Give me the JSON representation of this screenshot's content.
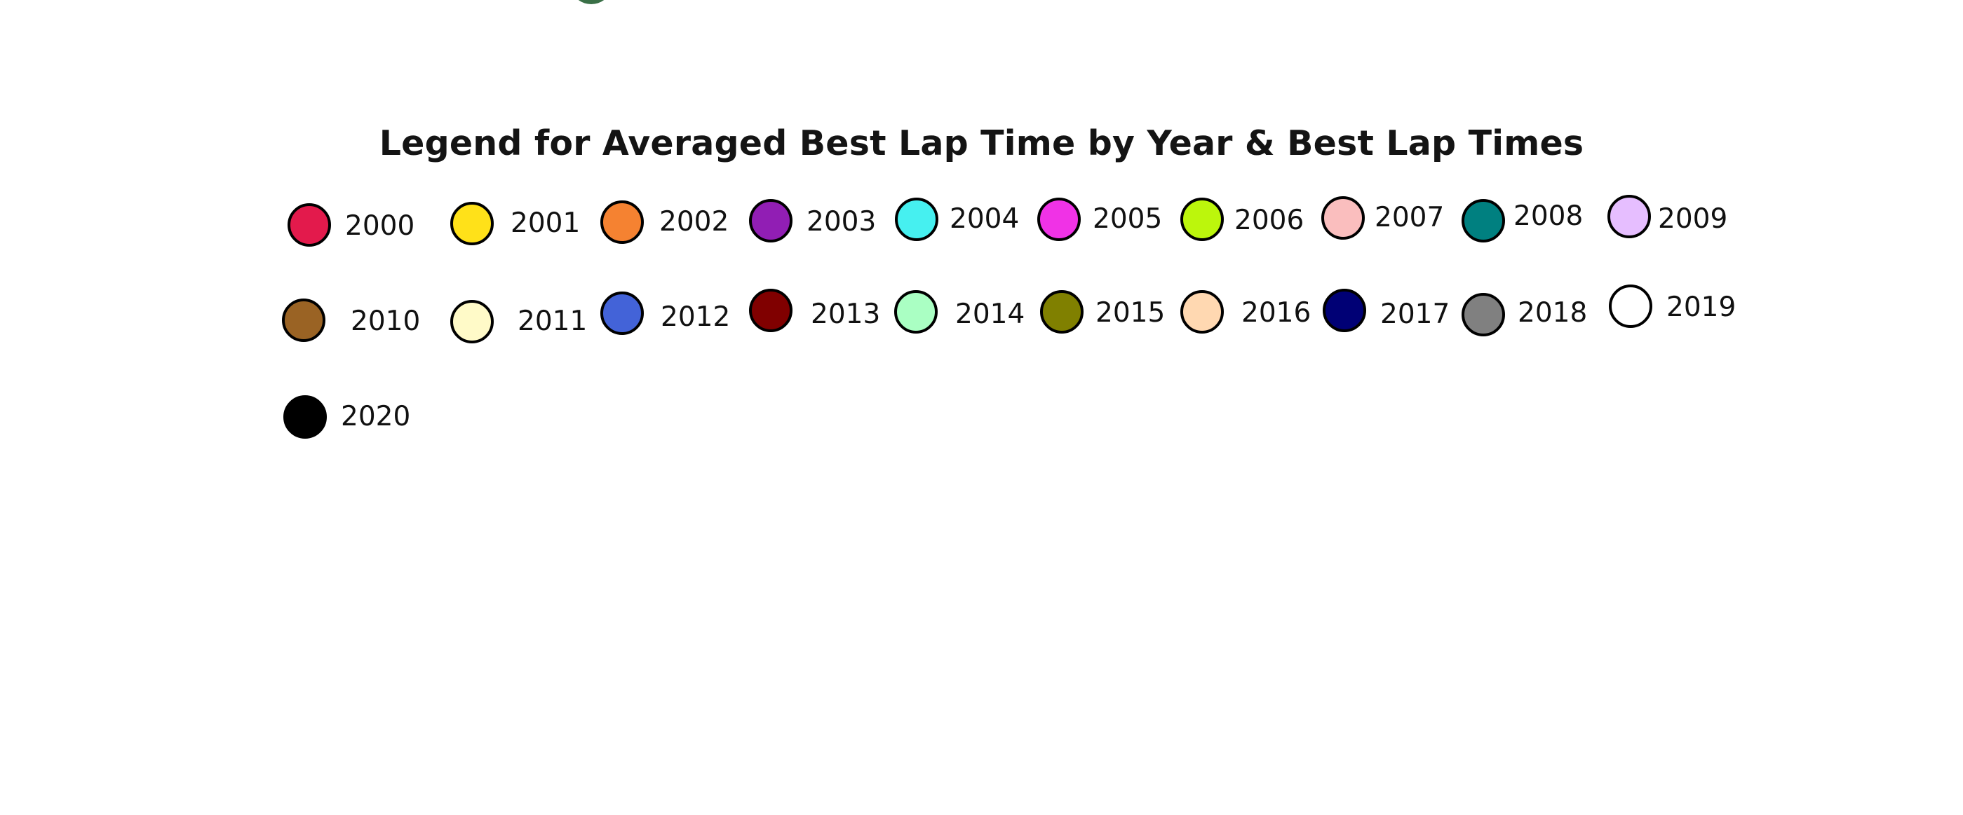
{
  "chart_data": {
    "type": "legend",
    "title": "Legend for Averaged Best Lap Time by Year & Best Lap Times",
    "entries": [
      {
        "label": "2000",
        "color": "#e31a4c"
      },
      {
        "label": "2001",
        "color": "#ffe119"
      },
      {
        "label": "2002",
        "color": "#f58231"
      },
      {
        "label": "2003",
        "color": "#911eb4"
      },
      {
        "label": "2004",
        "color": "#46f0f0"
      },
      {
        "label": "2005",
        "color": "#f032e6"
      },
      {
        "label": "2006",
        "color": "#bcf60c"
      },
      {
        "label": "2007",
        "color": "#fabebe"
      },
      {
        "label": "2008",
        "color": "#008080"
      },
      {
        "label": "2009",
        "color": "#e6beff"
      },
      {
        "label": "2010",
        "color": "#9a6324"
      },
      {
        "label": "2011",
        "color": "#fffac8"
      },
      {
        "label": "2012",
        "color": "#4363d8"
      },
      {
        "label": "2013",
        "color": "#800000"
      },
      {
        "label": "2014",
        "color": "#aaffc3"
      },
      {
        "label": "2015",
        "color": "#808000"
      },
      {
        "label": "2016",
        "color": "#ffd8b1"
      },
      {
        "label": "2017",
        "color": "#000075"
      },
      {
        "label": "2018",
        "color": "#808080"
      },
      {
        "label": "2019",
        "color": "#ffffff"
      },
      {
        "label": "2020",
        "color": "#000000"
      }
    ]
  },
  "partial_marker_color": "#3a7047"
}
